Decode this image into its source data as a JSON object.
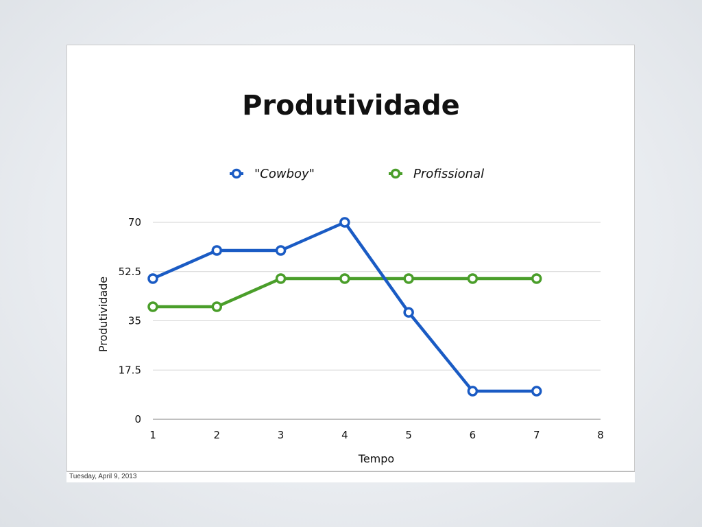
{
  "slide": {
    "footer_date": "Tuesday, April 9, 2013"
  },
  "chart_data": {
    "type": "line",
    "title": "Produtividade",
    "xlabel": "Tempo",
    "ylabel": "Produtividade",
    "x": [
      1,
      2,
      3,
      4,
      5,
      6,
      7
    ],
    "xlim": [
      1,
      8
    ],
    "ylim": [
      0,
      70
    ],
    "x_ticks": [
      "1",
      "2",
      "3",
      "4",
      "5",
      "6",
      "7",
      "8"
    ],
    "y_ticks": [
      "0",
      "17.5",
      "35",
      "52.5",
      "70"
    ],
    "grid": "horizontal",
    "legend_position": "top",
    "series": [
      {
        "name": "\"Cowboy\"",
        "color": "#1a5bc4",
        "values": [
          50,
          60,
          60,
          70,
          38,
          10,
          10
        ]
      },
      {
        "name": "Profissional",
        "color": "#4a9e2a",
        "values": [
          40,
          40,
          50,
          50,
          50,
          50,
          50
        ]
      }
    ]
  }
}
